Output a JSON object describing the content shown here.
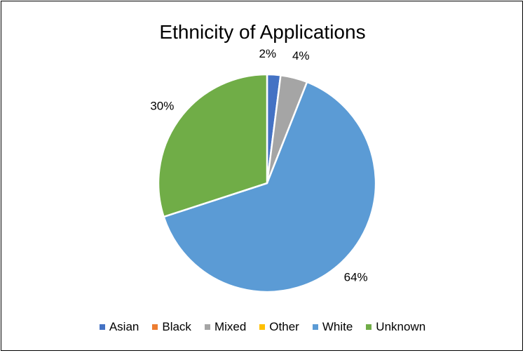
{
  "chart_data": {
    "type": "pie",
    "title": "Ethnicity of Applications",
    "categories": [
      "Asian",
      "Black",
      "Mixed",
      "Other",
      "White",
      "Unknown"
    ],
    "values": [
      2,
      0,
      4,
      0,
      64,
      30
    ],
    "data_labels": [
      "2%",
      "",
      "4%",
      "",
      "64%",
      "30%"
    ],
    "colors": [
      "#4472C4",
      "#ED7D31",
      "#A5A5A5",
      "#FFC000",
      "#5B9BD5",
      "#70AD47"
    ],
    "legend_position": "bottom"
  }
}
